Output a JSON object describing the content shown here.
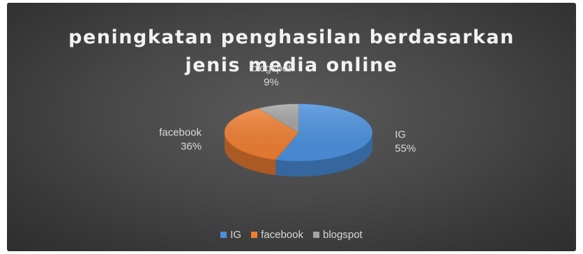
{
  "chart_data": {
    "type": "pie",
    "title_lines": [
      "peningkatan penghasilan berdasarkan",
      "jenis media online"
    ],
    "slices": [
      {
        "name": "IG",
        "value": 55,
        "label": "55%",
        "color": "#4a8fdc"
      },
      {
        "name": "facebook",
        "value": 36,
        "label": "36%",
        "color": "#ed7d31"
      },
      {
        "name": "blogspot",
        "value": 9,
        "label": "9%",
        "color": "#a5a5a5"
      }
    ],
    "style": "3d",
    "legend_position": "bottom"
  }
}
